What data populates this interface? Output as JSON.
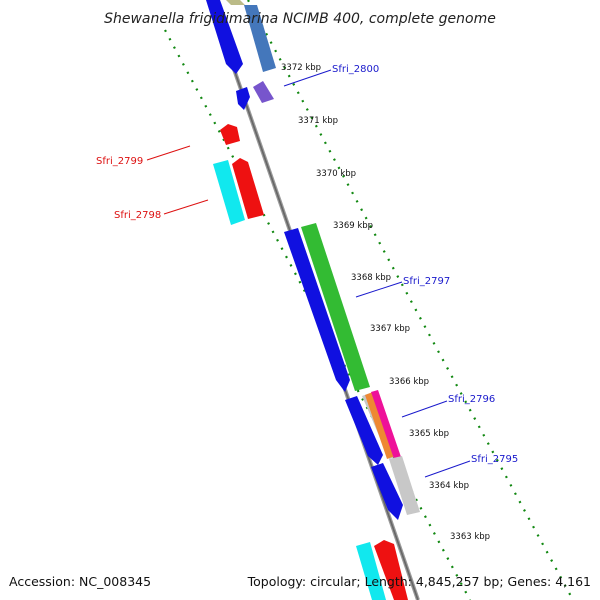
{
  "title": "Shewanella frigidimarina NCIMB 400, complete genome",
  "accession": "Accession: NC_008345",
  "summary": "Topology: circular; Length: 4,845,257 bp; Genes: 4,161",
  "ticks": [
    "3372 kbp",
    "3371 kbp",
    "3370 kbp",
    "3369 kbp",
    "3368 kbp",
    "3367 kbp",
    "3366 kbp",
    "3365 kbp",
    "3364 kbp",
    "3363 kbp"
  ],
  "genes": [
    {
      "label": "Sfri_2800",
      "strand": "forward",
      "color": "#1a1acc"
    },
    {
      "label": "Sfri_2799",
      "strand": "reverse",
      "color": "#dd1111"
    },
    {
      "label": "Sfri_2798",
      "strand": "reverse",
      "color": "#dd1111"
    },
    {
      "label": "Sfri_2797",
      "strand": "forward",
      "color": "#1a1acc"
    },
    {
      "label": "Sfri_2796",
      "strand": "forward",
      "color": "#1a1acc"
    },
    {
      "label": "Sfri_2795",
      "strand": "forward",
      "color": "#1a1acc"
    }
  ],
  "colors": {
    "backbone": "#808080",
    "ruler": "#118811",
    "forward_label": "#1a1acc",
    "reverse_label": "#dd1111",
    "cds_blue": "#1010e0",
    "cds_green": "#33bb33",
    "cds_red": "#ee1111",
    "cds_cyan": "#11e8ee",
    "cds_steel": "#4477bb",
    "cds_purple": "#7755cc",
    "cds_olive": "#bbbb88",
    "cds_gray": "#c8c8c8",
    "cds_orange": "#ee8833",
    "cds_magenta": "#ee1199"
  }
}
